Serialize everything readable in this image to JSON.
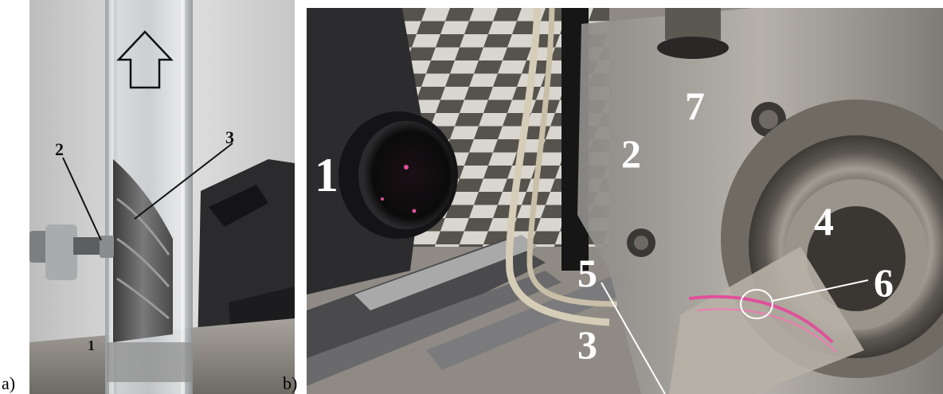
{
  "panels": {
    "a": {
      "label": "a)",
      "callouts": [
        "1",
        "2",
        "3"
      ],
      "icons": [
        "up-arrow-icon"
      ]
    },
    "b": {
      "label": "b)",
      "callouts": [
        "1",
        "2",
        "3",
        "4",
        "5",
        "6",
        "7"
      ]
    }
  },
  "colors": {
    "laser": "#e0509a",
    "callout_b": "#ffffff",
    "callout_a": "#111111"
  }
}
